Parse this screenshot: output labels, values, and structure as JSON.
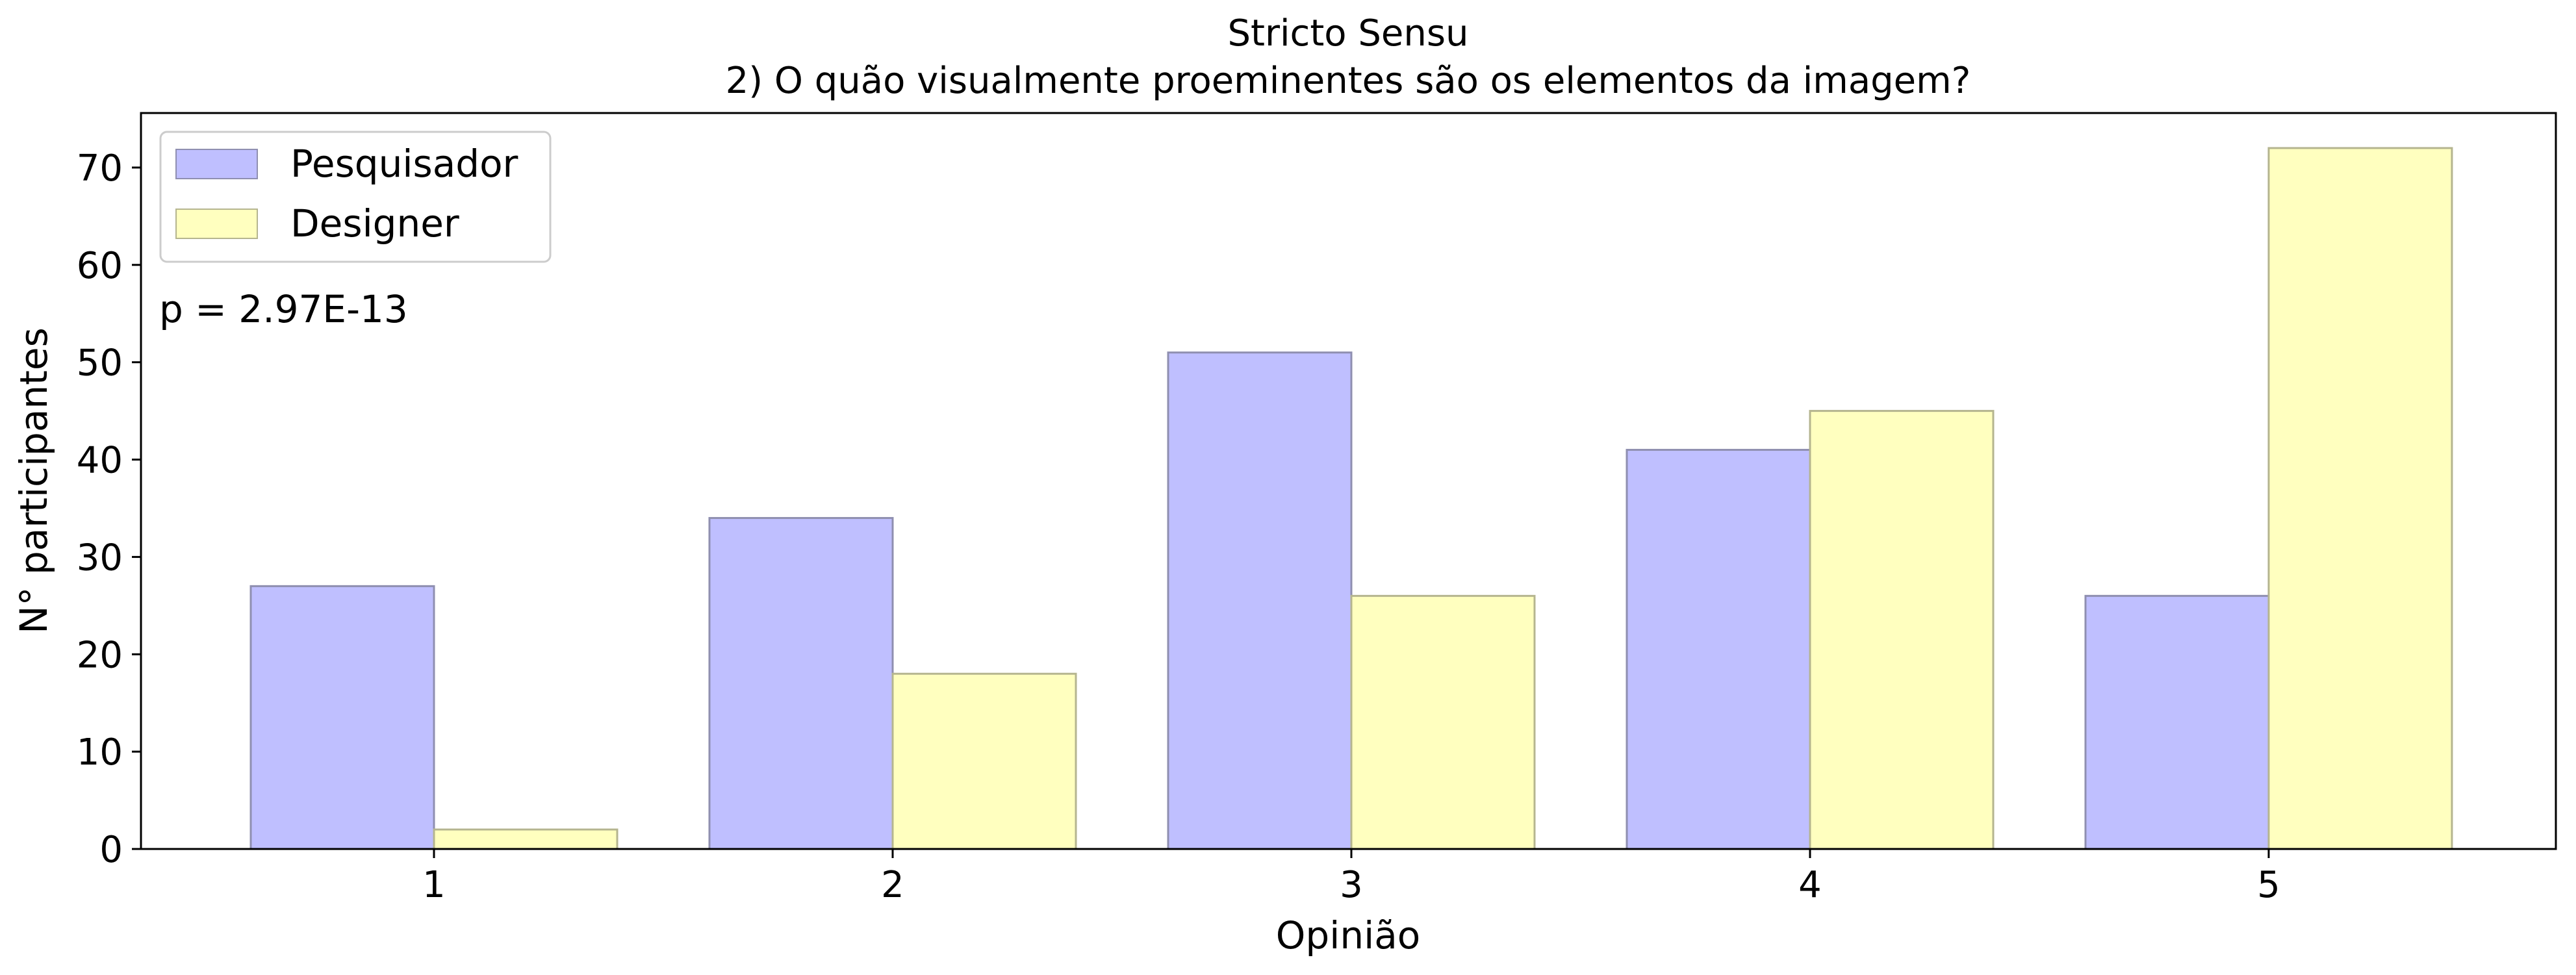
{
  "chart_data": {
    "type": "bar",
    "title": "Stricto Sensu",
    "subtitle": "2) O quão visualmente proeminentes são os elementos da imagem?",
    "xlabel": "Opinião",
    "ylabel": "N° participantes",
    "categories": [
      "1",
      "2",
      "3",
      "4",
      "5"
    ],
    "series": [
      {
        "name": "Pesquisador",
        "values": [
          27,
          34,
          51,
          41,
          26
        ],
        "color": "#bfbfff",
        "edge": "#8f8fb0"
      },
      {
        "name": "Designer",
        "values": [
          2,
          18,
          26,
          45,
          72
        ],
        "color": "#ffffbf",
        "edge": "#b5b58f"
      }
    ],
    "ylim": [
      0,
      75.6
    ],
    "yticks": [
      0,
      10,
      20,
      30,
      40,
      50,
      60,
      70
    ],
    "grid": false,
    "legend_position": "top-left",
    "annotation": "p = 2.97E-13"
  }
}
